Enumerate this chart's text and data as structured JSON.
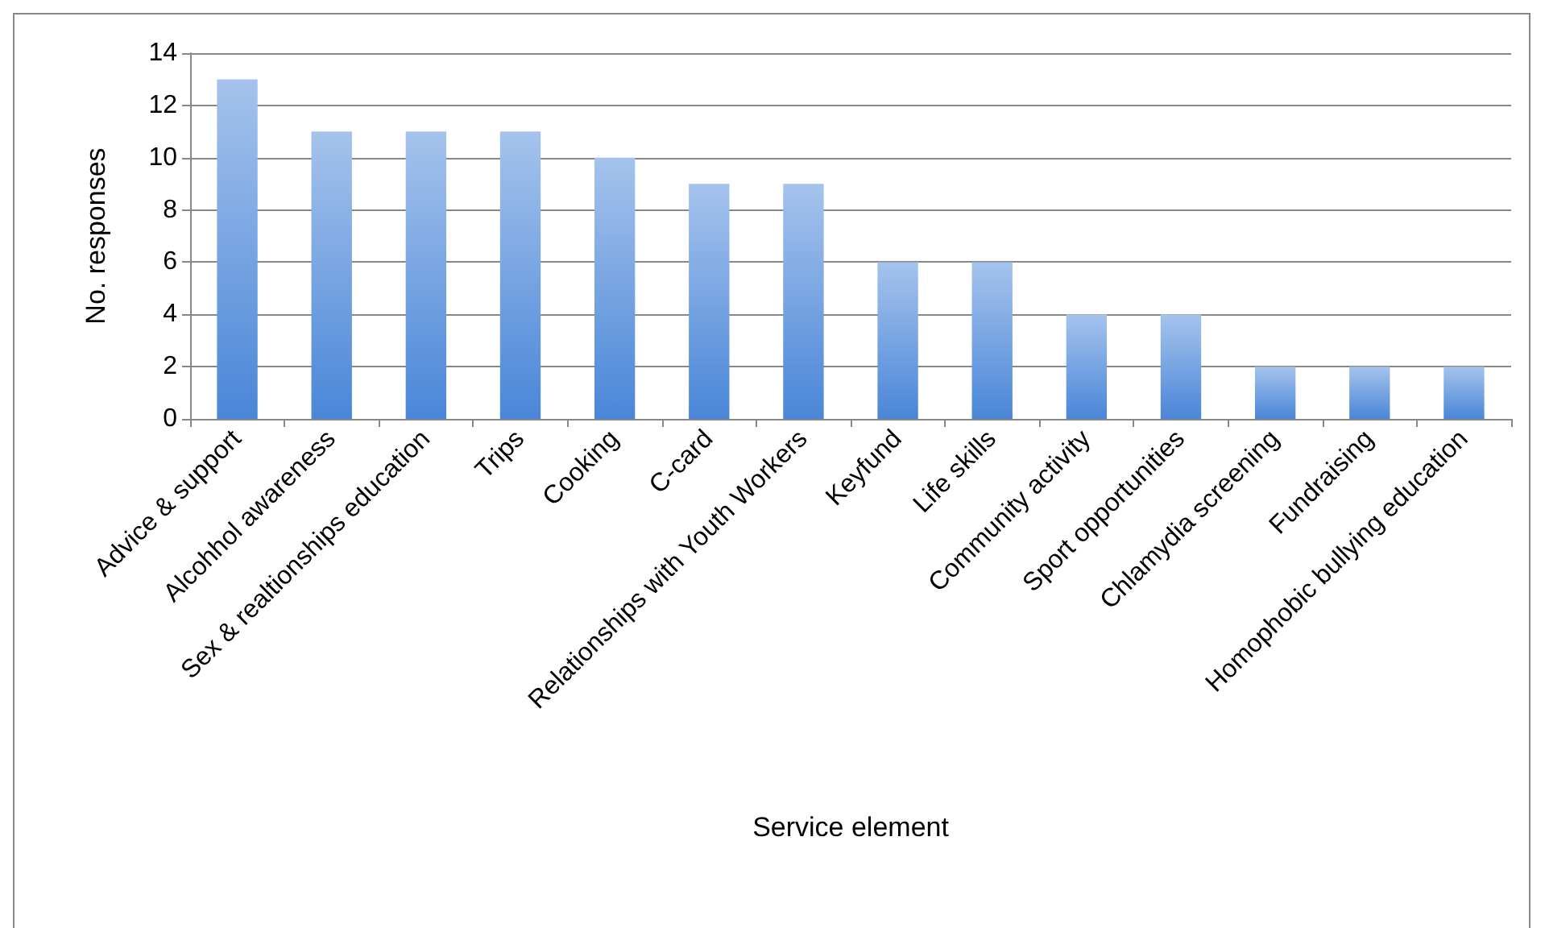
{
  "chart_data": {
    "type": "bar",
    "categories": [
      "Advice & support",
      "Alcohhol awareness",
      "Sex & realtionships education",
      "Trips",
      "Cooking",
      "C-card",
      "Relationships with Youth Workers",
      "Keyfund",
      "Life skills",
      "Community activity",
      "Sport opportunities",
      "Chlamydia screening",
      "Fundraising",
      "Homophobic bullying education"
    ],
    "values": [
      13,
      11,
      11,
      11,
      10,
      9,
      9,
      6,
      6,
      4,
      4,
      2,
      2,
      2
    ],
    "color": "#4a86d8",
    "xlabel": "Service element",
    "ylabel": "No. responses",
    "ylim": [
      0,
      14
    ],
    "yticks": [
      0,
      2,
      4,
      6,
      8,
      10,
      12,
      14
    ],
    "grid": "y"
  }
}
